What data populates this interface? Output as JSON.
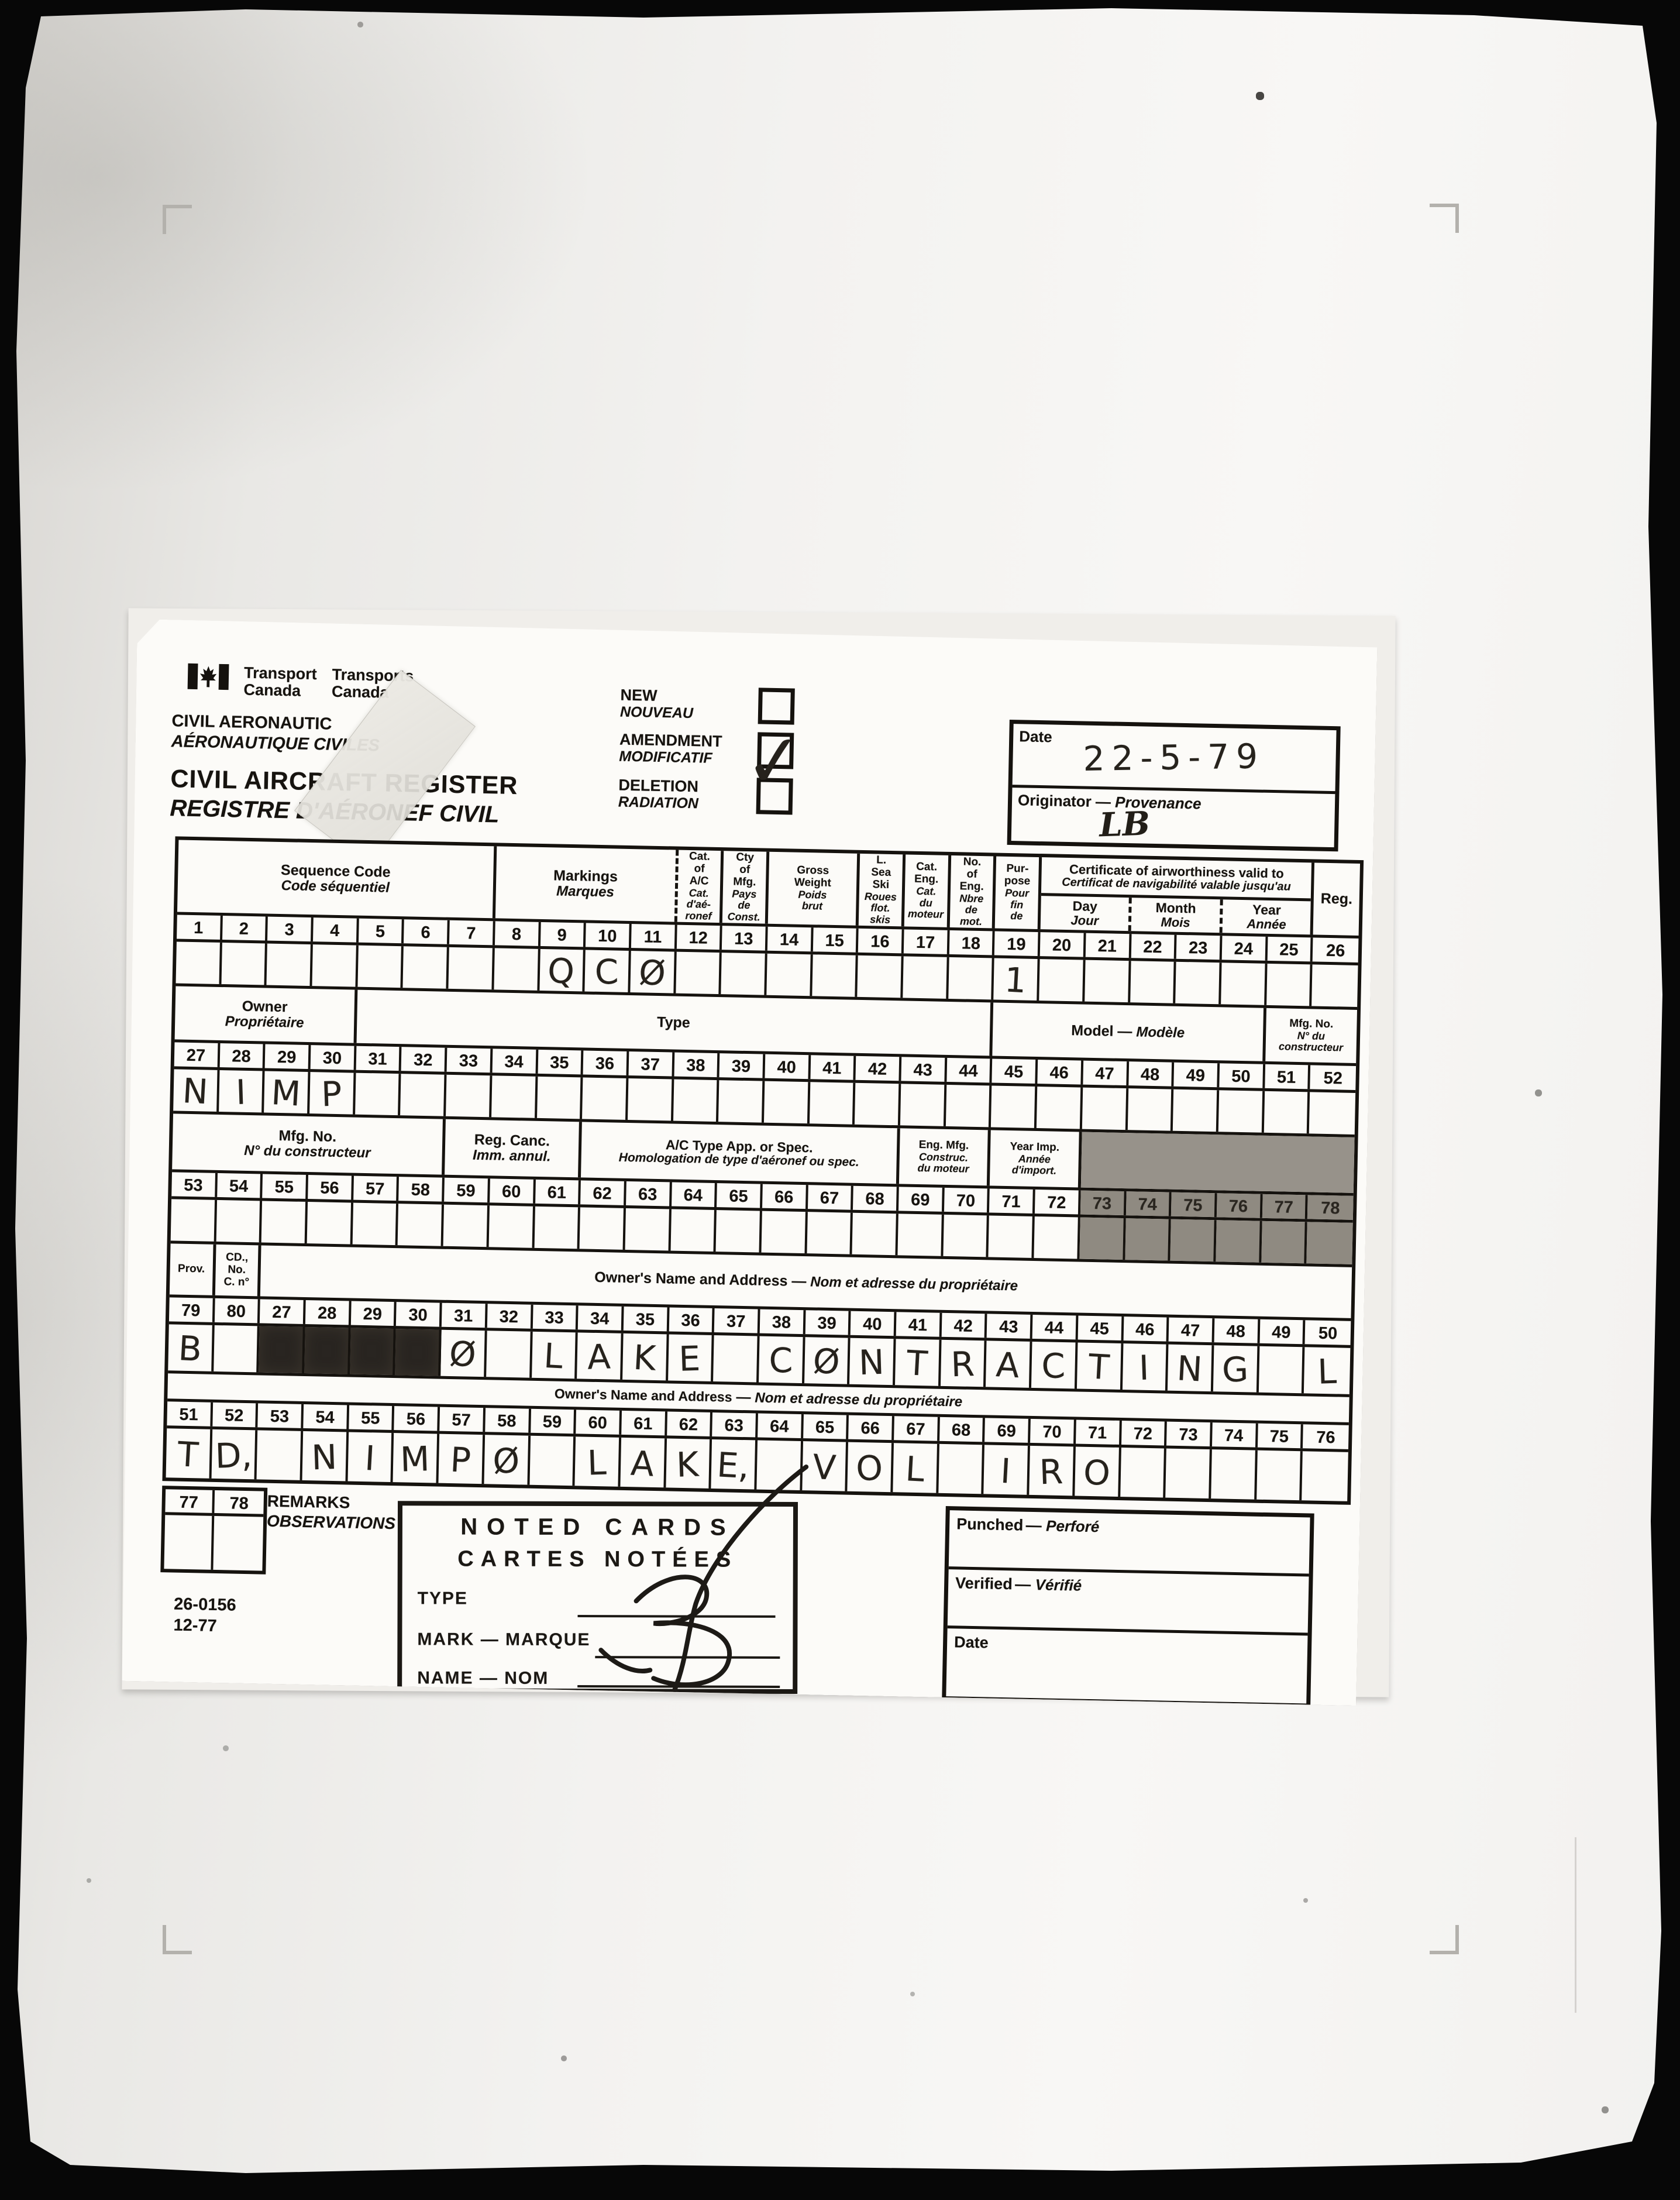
{
  "header": {
    "logo_en": "Transport\nCanada",
    "logo_fr": "Transports\nCanada",
    "dept_en": "CIVIL AERONAUTIC",
    "dept_fr": "AÉRONAUTIQUE CIVILES",
    "title_en": "CIVIL AIRCRAFT REGISTER",
    "title_fr": "REGISTRE D'AÉRONEF CIVIL",
    "checkboxes": [
      {
        "en": "NEW",
        "fr": "NOUVEAU",
        "checked": false
      },
      {
        "en": "AMENDMENT",
        "fr": "MODIFICATIF",
        "checked": true
      },
      {
        "en": "DELETION",
        "fr": "RADIATION",
        "checked": false
      }
    ],
    "check_glyph": "✓",
    "date_label": "Date",
    "date_value": "22-5-79",
    "originator_label_en": "Originator",
    "originator_label_fr": "Provenance",
    "originator_value": "LB"
  },
  "table": {
    "sections": [
      {
        "id": "s1",
        "headers": [
          {
            "en": "Sequence Code",
            "fr": "Code séquentiel",
            "span": 7,
            "size": "md"
          },
          {
            "en": "Markings",
            "fr": "Marques",
            "span": 4,
            "size": "md",
            "dashed_right": true
          },
          {
            "en": "Cat.\nof\nA/C",
            "fr": "Cat.\nd'aé-\nronef",
            "span": 1,
            "size": "xs"
          },
          {
            "en": "Cty\nof\nMfg.",
            "fr": "Pays\nde\nConst.",
            "span": 1,
            "size": "xs"
          },
          {
            "en": "Gross\nWeight",
            "fr": "Poids\nbrut",
            "span": 2,
            "size": "xs"
          },
          {
            "en": "L.\nSea\nSki",
            "fr": "Roues\nflot.\nskis",
            "span": 1,
            "size": "xs"
          },
          {
            "en": "Cat.\nEng.",
            "fr": "Cat.\ndu\nmoteur",
            "span": 1,
            "size": "xs"
          },
          {
            "en": "No.\nof\nEng.",
            "fr": "Nbre\nde\nmot.",
            "span": 1,
            "size": "xs"
          },
          {
            "en": "Pur-\npose",
            "fr": "Pour\nfin\nde",
            "span": 1,
            "size": "xs"
          },
          {
            "type": "cofa",
            "en": "Certificate of airworthiness valid to",
            "fr": "Certificat de navigabilité valable jusqu'au",
            "span": 6,
            "sub": [
              {
                "en": "Day",
                "fr": "Jour"
              },
              {
                "en": "Month",
                "fr": "Mois"
              },
              {
                "en": "Year",
                "fr": "Année"
              }
            ]
          },
          {
            "en": "Reg.",
            "fr": "",
            "span": 1,
            "size": "md"
          }
        ],
        "numbers": [
          "1",
          "2",
          "3",
          "4",
          "5",
          "6",
          "7",
          "8",
          "9",
          "10",
          "11",
          "12",
          "13",
          "14",
          "15",
          "16",
          "17",
          "18",
          "19",
          "20",
          "21",
          "22",
          "23",
          "24",
          "25",
          "26"
        ],
        "data": {
          "9": "Q",
          "10": "C",
          "11": "Ø",
          "19": "1"
        }
      },
      {
        "id": "s2",
        "headers": [
          {
            "en": "Owner",
            "fr": "Propriétaire",
            "span": 4,
            "size": "md"
          },
          {
            "en": "Type",
            "fr": "",
            "span": 14,
            "size": "md"
          },
          {
            "combined": true,
            "en": "Model",
            "fr": "Modèle",
            "span": 6,
            "size": "md"
          },
          {
            "en": "Mfg. No.",
            "fr": "N° du\nconstructeur",
            "span": 2,
            "size": "xs"
          }
        ],
        "numbers": [
          "27",
          "28",
          "29",
          "30",
          "31",
          "32",
          "33",
          "34",
          "35",
          "36",
          "37",
          "38",
          "39",
          "40",
          "41",
          "42",
          "43",
          "44",
          "45",
          "46",
          "47",
          "48",
          "49",
          "50",
          "51",
          "52"
        ],
        "data": {
          "27": "N",
          "28": "I",
          "29": "M",
          "30": "P"
        }
      },
      {
        "id": "s3",
        "headers": [
          {
            "en": "Mfg. No.",
            "fr": "N° du constructeur",
            "span": 6,
            "size": "md"
          },
          {
            "en": "Reg. Canc.",
            "fr": "Imm. annul.",
            "span": 3,
            "size": "md"
          },
          {
            "en": "A/C Type App. or Spec.",
            "fr": "Homologation de type d'aéronef ou spec.",
            "span": 7,
            "size": "sm"
          },
          {
            "en": "Eng. Mfg.",
            "fr": "Construc.\ndu moteur",
            "span": 2,
            "size": "xs"
          },
          {
            "en": "Year Imp.",
            "fr": "Année\nd'import.",
            "span": 2,
            "size": "xs"
          },
          {
            "en": "",
            "fr": "",
            "span": 6,
            "size": "md",
            "shaded": true
          }
        ],
        "numbers": [
          "53",
          "54",
          "55",
          "56",
          "57",
          "58",
          "59",
          "60",
          "61",
          "62",
          "63",
          "64",
          "65",
          "66",
          "67",
          "68",
          "69",
          "70",
          "71",
          "72",
          "73",
          "74",
          "75",
          "76",
          "77",
          "78"
        ],
        "data": {},
        "shade": [
          "73",
          "74",
          "75",
          "76",
          "77",
          "78"
        ]
      },
      {
        "id": "s4",
        "headers": [
          {
            "en": "Prov.",
            "fr": "",
            "span": 1,
            "size": "xs"
          },
          {
            "en": "CD.,\nNo.\nC. n°",
            "fr": "",
            "span": 1,
            "size": "xs"
          },
          {
            "combined": true,
            "en": "Owner's Name and Address",
            "fr": "Nom et adresse du propriétaire",
            "span": 24,
            "size": "md"
          }
        ],
        "numbers": [
          "79",
          "80",
          "27",
          "28",
          "29",
          "30",
          "31",
          "32",
          "33",
          "34",
          "35",
          "36",
          "37",
          "38",
          "39",
          "40",
          "41",
          "42",
          "43",
          "44",
          "45",
          "46",
          "47",
          "48",
          "49",
          "50"
        ],
        "data": {
          "79": "B",
          "31": "Ø",
          "33": "L",
          "34": "A",
          "35": "K",
          "36": "E",
          "38": "C",
          "39": "Ø",
          "40": "N",
          "41": "T",
          "42": "R",
          "43": "A",
          "44": "C",
          "45": "T",
          "46": "I",
          "47": "N",
          "48": "G",
          "50": "L"
        },
        "redact": [
          "27",
          "28",
          "29",
          "30"
        ]
      },
      {
        "id": "s5",
        "headers": [
          {
            "combined": true,
            "en": "Owner's Name and Address",
            "fr": "Nom et adresse du propriétaire",
            "span": 26,
            "size": "sm"
          }
        ],
        "numbers": [
          "51",
          "52",
          "53",
          "54",
          "55",
          "56",
          "57",
          "58",
          "59",
          "60",
          "61",
          "62",
          "63",
          "64",
          "65",
          "66",
          "67",
          "68",
          "69",
          "70",
          "71",
          "72",
          "73",
          "74",
          "75",
          "76"
        ],
        "data": {
          "51": "T",
          "52": "D,",
          "54": "N",
          "55": "I",
          "56": "M",
          "57": "P",
          "58": "Ø",
          "60": "L",
          "61": "A",
          "62": "K",
          "63": "E,",
          "65": "V",
          "66": "O",
          "67": "L",
          "69": "I",
          "70": "R",
          "71": "O"
        }
      },
      {
        "id": "s6",
        "cols": 2,
        "mount": "grid-table-small",
        "numbers": [
          "77",
          "78"
        ],
        "data": {}
      }
    ]
  },
  "footer": {
    "remarks_en": "REMARKS",
    "remarks_fr": "OBSERVATIONS",
    "form_number": "26-0156\n12-77",
    "stamp_line1": "NOTED CARDS",
    "stamp_line2": "CARTES NOTÉES",
    "stamp_fields": [
      "TYPE",
      "MARK — MARQUE",
      "NAME — NOM"
    ],
    "punched_en": "Punched",
    "punched_fr": "Perforé",
    "verified_en": "Verified",
    "verified_fr": "Vérifié",
    "date_label": "Date"
  }
}
